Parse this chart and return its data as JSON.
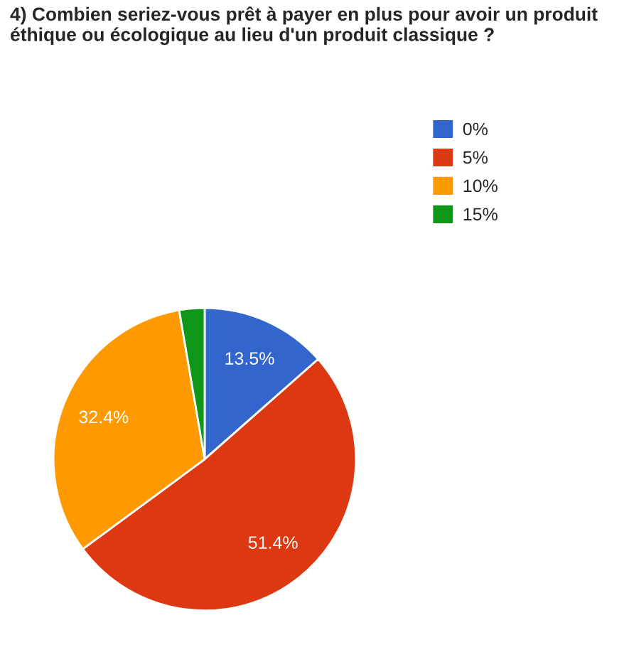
{
  "chart_data": {
    "type": "pie",
    "title": "4) Combien seriez-vous prêt à payer en plus pour avoir un produit éthique ou écologique au lieu d'un produit classique ?",
    "categories": [
      "0%",
      "5%",
      "10%",
      "15%"
    ],
    "values": [
      13.5,
      51.4,
      32.4,
      2.7
    ],
    "value_labels": [
      "13.5%",
      "51.4%",
      "32.4%",
      null
    ],
    "colors": [
      "#3366cc",
      "#dc3912",
      "#ff9900",
      "#109618"
    ],
    "legend": "right"
  }
}
